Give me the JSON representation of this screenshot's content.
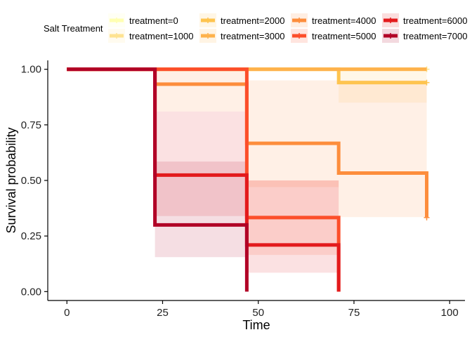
{
  "chart_data": {
    "type": "line",
    "subtype": "kaplan-meier step curves with confidence bands",
    "xlabel": "Time",
    "ylabel": "Survival probability",
    "xlim": [
      -5,
      104
    ],
    "ylim": [
      -0.04,
      1.04
    ],
    "x_ticks": [
      0,
      25,
      50,
      75,
      100
    ],
    "y_ticks": [
      0.0,
      0.25,
      0.5,
      0.75,
      1.0
    ],
    "x_tick_labels": [
      "0",
      "25",
      "50",
      "75",
      "100"
    ],
    "y_tick_labels": [
      "0.00",
      "0.25",
      "0.50",
      "0.75",
      "1.00"
    ],
    "grid": false,
    "legend": {
      "title": "Salt Treatment",
      "placement": "top"
    },
    "series": [
      {
        "name": "treatment=0",
        "color": "#ffffb2",
        "steps": [
          [
            0,
            1.0
          ],
          [
            94,
            1.0
          ]
        ],
        "censor": [
          [
            94,
            1.0
          ]
        ],
        "ci": [
          [
            0,
            1.0,
            1.0
          ],
          [
            94,
            1.0,
            1.0
          ]
        ]
      },
      {
        "name": "treatment=1000",
        "color": "#fee391",
        "steps": [
          [
            0,
            1.0
          ],
          [
            94,
            1.0
          ]
        ],
        "censor": [
          [
            94,
            1.0
          ]
        ],
        "ci": [
          [
            0,
            1.0,
            1.0
          ],
          [
            94,
            1.0,
            1.0
          ]
        ]
      },
      {
        "name": "treatment=2000",
        "color": "#fec44f",
        "steps": [
          [
            0,
            1.0
          ],
          [
            71,
            0.94
          ],
          [
            94,
            0.94
          ]
        ],
        "censor": [
          [
            94,
            0.94
          ]
        ],
        "ci": [
          [
            0,
            1.0,
            1.0
          ],
          [
            71,
            0.85,
            1.0
          ],
          [
            94,
            0.85,
            1.0
          ]
        ]
      },
      {
        "name": "treatment=3000",
        "color": "#feb24c",
        "steps": [
          [
            0,
            1.0
          ],
          [
            94,
            1.0
          ]
        ],
        "censor": [],
        "ci": [
          [
            0,
            1.0,
            1.0
          ],
          [
            94,
            1.0,
            1.0
          ]
        ]
      },
      {
        "name": "treatment=4000",
        "color": "#fd8d3c",
        "steps": [
          [
            0,
            1.0
          ],
          [
            23,
            0.933
          ],
          [
            47,
            0.667
          ],
          [
            71,
            0.533
          ],
          [
            94,
            0.533
          ],
          [
            94,
            0.333
          ]
        ],
        "censor": [
          [
            94,
            0.333
          ]
        ],
        "ci": [
          [
            0,
            1.0,
            1.0
          ],
          [
            23,
            0.81,
            1.0
          ],
          [
            47,
            0.47,
            0.95
          ],
          [
            71,
            0.335,
            0.95
          ],
          [
            94,
            0.335,
            0.95
          ]
        ]
      },
      {
        "name": "treatment=5000",
        "color": "#fc4e2a",
        "steps": [
          [
            0,
            1.0
          ],
          [
            47,
            1.0
          ],
          [
            47,
            0.333
          ],
          [
            71,
            0.333
          ],
          [
            71,
            0.0
          ]
        ],
        "censor": [],
        "ci": [
          [
            0,
            1.0,
            1.0
          ],
          [
            47,
            0.165,
            0.5
          ],
          [
            71,
            0.165,
            0.5
          ]
        ]
      },
      {
        "name": "treatment=6000",
        "color": "#e31a1c",
        "steps": [
          [
            0,
            1.0
          ],
          [
            23,
            1.0
          ],
          [
            23,
            0.524
          ],
          [
            47,
            0.524
          ],
          [
            47,
            0.21
          ],
          [
            71,
            0.21
          ],
          [
            71,
            0.0
          ]
        ],
        "censor": [],
        "ci": [
          [
            0,
            1.0,
            1.0
          ],
          [
            23,
            0.34,
            0.81
          ],
          [
            47,
            0.085,
            0.5
          ],
          [
            71,
            0.085,
            0.5
          ]
        ]
      },
      {
        "name": "treatment=7000",
        "color": "#b10026",
        "steps": [
          [
            0,
            1.0
          ],
          [
            23,
            1.0
          ],
          [
            23,
            0.3
          ],
          [
            47,
            0.3
          ],
          [
            47,
            0.0
          ]
        ],
        "censor": [],
        "ci": [
          [
            0,
            1.0,
            1.0
          ],
          [
            23,
            0.155,
            0.585
          ],
          [
            47,
            0.155,
            0.585
          ]
        ]
      }
    ]
  }
}
